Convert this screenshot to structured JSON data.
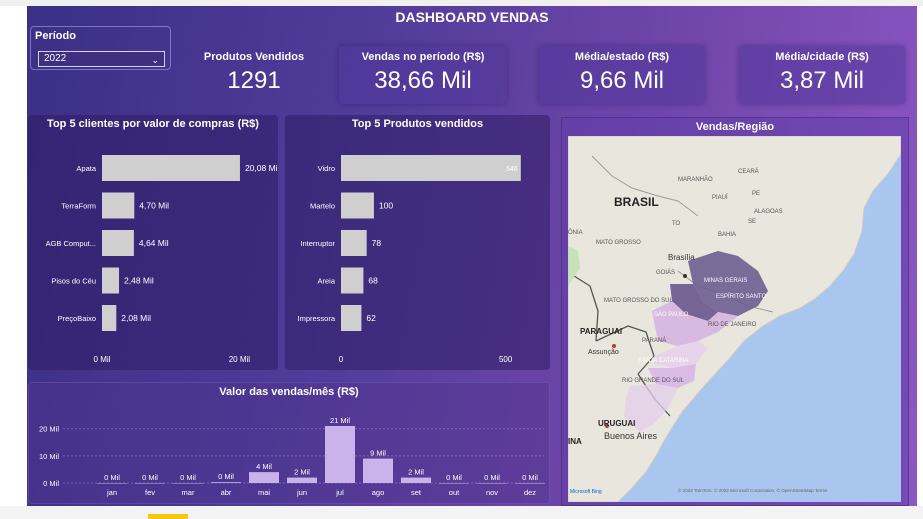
{
  "dashboard_title": "DASHBOARD VENDAS",
  "period": {
    "label": "Período",
    "selected": "2022"
  },
  "kpis": {
    "produtos_vendidos": {
      "label": "Produtos Vendidos",
      "value": "1291"
    },
    "vendas_periodo": {
      "label": "Vendas no período (R$)",
      "value": "38,66 Mil"
    },
    "media_estado": {
      "label": "Média/estado (R$)",
      "value": "9,66 Mil"
    },
    "media_cidade": {
      "label": "Média/cidade (R$)",
      "value": "3,87 Mil"
    }
  },
  "colors": {
    "bar": "#cfcfcf",
    "month_bar": "#c9b3ea",
    "text": "#ffffff"
  },
  "chart_data": [
    {
      "type": "bar",
      "orientation": "horizontal",
      "title": "Top 5 clientes por valor de compras (R$)",
      "categories": [
        "Apata",
        "TerraForm",
        "AGB Comput...",
        "Pisos do Céu",
        "PreçoBaixo"
      ],
      "values": [
        20.08,
        4.7,
        4.64,
        2.48,
        2.08
      ],
      "data_labels": [
        "20,08 Mil",
        "4,70 Mil",
        "4,64 Mil",
        "2,48 Mil",
        "2,08 Mil"
      ],
      "xticks": [
        "0 Mil",
        "20 Mil"
      ],
      "xlim": [
        0,
        23
      ]
    },
    {
      "type": "bar",
      "orientation": "horizontal",
      "title": "Top 5 Produtos vendidos",
      "categories": [
        "Vidro",
        "Martelo",
        "Interruptor",
        "Areia",
        "Impressora"
      ],
      "values": [
        546,
        100,
        78,
        68,
        62
      ],
      "data_labels": [
        "546",
        "100",
        "78",
        "68",
        "62"
      ],
      "xticks": [
        "0",
        "500"
      ],
      "xlim": [
        0,
        580
      ]
    },
    {
      "type": "bar",
      "title": "Valor das vendas/mês (R$)",
      "categories": [
        "jan",
        "fev",
        "mar",
        "abr",
        "mai",
        "jun",
        "jul",
        "ago",
        "set",
        "out",
        "nov",
        "dez"
      ],
      "values": [
        0,
        0,
        0,
        0.3,
        4,
        2,
        21,
        9,
        2,
        0,
        0,
        0
      ],
      "data_labels": [
        "0 Mil",
        "0 Mil",
        "0 Mil",
        "0 Mil",
        "4 Mil",
        "2 Mil",
        "21 Mil",
        "9 Mil",
        "2 Mil",
        "0 Mil",
        "0 Mil",
        "0 Mil"
      ],
      "yticks": [
        "20 Mil",
        "10 Mil",
        "0 Mil"
      ],
      "ylim": [
        0,
        21
      ]
    }
  ],
  "map": {
    "title": "Vendas/Região",
    "labels": {
      "brasil": "BRASIL",
      "paraguai": "PARAGUAI",
      "uruguai": "URUGUAI",
      "brasilia": "Brasília",
      "assuncao": "Assunção",
      "buenos_aires": "Buenos Aires",
      "ceara": "CEARÁ",
      "maranhao": "MARANHÃO",
      "piaui": "PIAUÍ",
      "pe": "PE",
      "alagoas": "ALAGOAS",
      "se": "SE",
      "to": "TO",
      "bahia": "BAHIA",
      "mato_grosso": "MATO GROSSO",
      "goias": "GOIÁS",
      "minas_gerais": "MINAS GERAIS",
      "espirito_santo": "ESPÍRITO SANTO",
      "mato_grosso_do_sul": "MATO GROSSO DO SUL",
      "sao_paulo": "SÃO PAULO",
      "rio_de_janeiro": "RIO DE JANEIRO",
      "parana": "PARANÁ",
      "santa_catarina": "SANTA CATARINA",
      "rio_grande_do_sul": "RIO GRANDE DO SUL",
      "rondonia_partial": "ÔNIA",
      "argentina_partial": "INA",
      "attribution": "© 2022 TomTom, © 2022 Microsoft Corporation, © OpenStreetMap Terms",
      "bing": "Microsoft Bing"
    }
  }
}
